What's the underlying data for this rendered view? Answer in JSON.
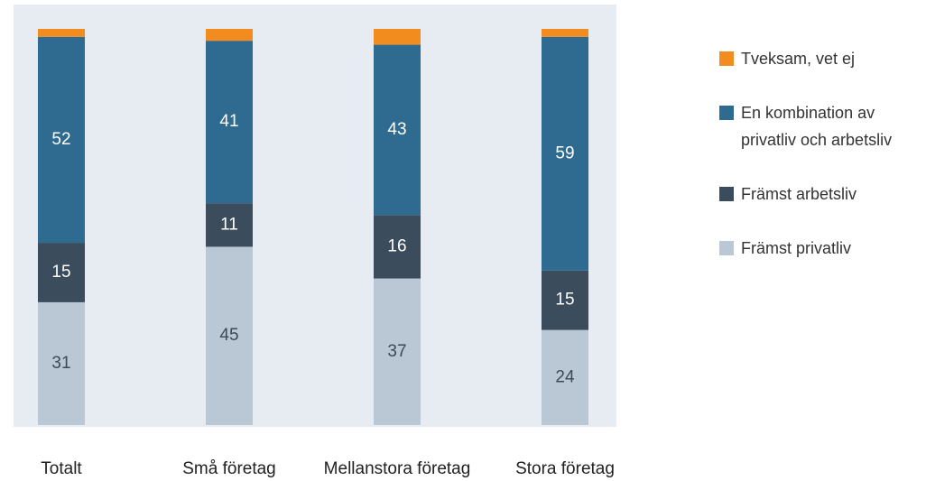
{
  "chart_data": {
    "type": "stacked_bar",
    "categories": [
      "Totalt",
      "Små företag",
      "Mellanstora företag",
      "Stora företag"
    ],
    "series": [
      {
        "name": "Främst privatliv",
        "color": "#b9c8d4",
        "values": [
          31,
          45,
          37,
          24
        ]
      },
      {
        "name": "Främst arbetsliv",
        "color": "#3b4d5d",
        "values": [
          15,
          11,
          16,
          15
        ]
      },
      {
        "name": "En kombination av privatliv och arbetsliv",
        "color": "#2f6b91",
        "values": [
          52,
          41,
          43,
          59
        ]
      },
      {
        "name": "Tveksam, vet ej",
        "color": "#f28c1e",
        "values": [
          2,
          3,
          4,
          2
        ]
      }
    ]
  }
}
